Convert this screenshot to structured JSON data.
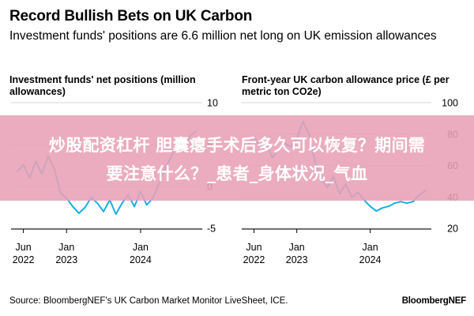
{
  "header": {
    "title": "Record Bullish Bets on UK Carbon",
    "subtitle": "Investment funds' positions are 6.6 million net long on UK emission allowances"
  },
  "chart_data": [
    {
      "type": "line",
      "title": "Investment funds' net positions (million allowances)",
      "x_ticks": [
        {
          "date": "2022-06",
          "line1": "Jun",
          "line2": "2022"
        },
        {
          "date": "2023-01",
          "line1": "Jan",
          "line2": "2023"
        },
        {
          "date": "2024-01",
          "line1": "Jan",
          "line2": "2024"
        }
      ],
      "xlim": [
        "2022-04",
        "2024-11"
      ],
      "ylim": [
        -5,
        10
      ],
      "y_ticks": [
        "10",
        "5",
        "0",
        "-5"
      ],
      "grid": "horizontal",
      "color": "#1aaee6",
      "series": [
        {
          "x": [
            "2022-05",
            "2022-06",
            "2022-07",
            "2022-08",
            "2022-09",
            "2022-10",
            "2022-11",
            "2022-12",
            "2023-01",
            "2023-02",
            "2023-03",
            "2023-04",
            "2023-05",
            "2023-06",
            "2023-07",
            "2023-08",
            "2023-09",
            "2023-10",
            "2023-11",
            "2023-12",
            "2024-01",
            "2024-02",
            "2024-03",
            "2024-04",
            "2024-05",
            "2024-06",
            "2024-07",
            "2024-08",
            "2024-09",
            "2024-10"
          ],
          "y": [
            1.8,
            2.6,
            1.0,
            3.0,
            1.5,
            3.6,
            2.2,
            -0.8,
            -1.4,
            -2.4,
            -3.2,
            -2.5,
            -1.3,
            -2.0,
            -3.0,
            -1.6,
            -3.3,
            -2.0,
            -1.0,
            -2.4,
            -0.6,
            -2.2,
            -1.4,
            0.4,
            2.2,
            3.6,
            5.6,
            4.2,
            6.0,
            6.6
          ]
        }
      ]
    },
    {
      "type": "line",
      "title": "Front-year UK carbon allowance price (£ per metric ton CO2e)",
      "x_ticks": [
        {
          "date": "2022-06",
          "line1": "Jun",
          "line2": "2022"
        },
        {
          "date": "2023-01",
          "line1": "Jan",
          "line2": "2023"
        },
        {
          "date": "2024-01",
          "line1": "Jan",
          "line2": "2024"
        }
      ],
      "xlim": [
        "2022-04",
        "2024-11"
      ],
      "ylim": [
        20,
        100
      ],
      "y_ticks": [
        "100",
        "80",
        "60",
        "40",
        "20"
      ],
      "grid": "horizontal",
      "color": "#1aaee6",
      "series": [
        {
          "x": [
            "2022-05",
            "2022-06",
            "2022-07",
            "2022-08",
            "2022-09",
            "2022-10",
            "2022-11",
            "2022-12",
            "2023-01",
            "2023-02",
            "2023-03",
            "2023-04",
            "2023-05",
            "2023-06",
            "2023-07",
            "2023-08",
            "2023-09",
            "2023-10",
            "2023-11",
            "2023-12",
            "2024-01",
            "2024-02",
            "2024-03",
            "2024-04",
            "2024-05",
            "2024-06",
            "2024-07",
            "2024-08",
            "2024-09",
            "2024-10"
          ],
          "y": [
            73,
            78,
            72,
            75,
            65,
            70,
            74,
            72,
            77,
            88,
            80,
            62,
            52,
            46,
            53,
            42,
            48,
            40,
            43,
            38,
            34,
            31,
            33,
            34,
            36,
            37,
            36,
            37,
            41,
            44
          ]
        }
      ]
    }
  ],
  "overlay": {
    "line1": "炒股配资杠杆 胆囊瘪手术后多久可以恢复？期间需",
    "line2": "要注意什么？_患者_身体状况_气血"
  },
  "footer": {
    "source": "Source: BloombergNEF's UK Carbon Market Monitor LiveSheet, ICE.",
    "brand": "BloombergNEF"
  }
}
